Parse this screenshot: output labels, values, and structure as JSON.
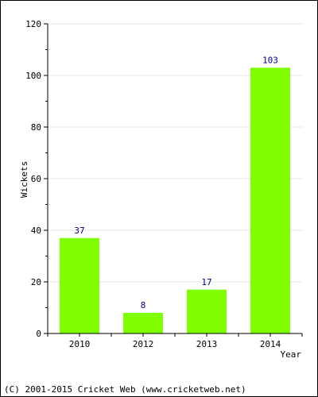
{
  "chart_data": {
    "type": "bar",
    "categories": [
      "2010",
      "2012",
      "2013",
      "2014"
    ],
    "values": [
      37,
      8,
      17,
      103
    ],
    "xlabel": "Year",
    "ylabel": "Wickets",
    "ylim": [
      0,
      120
    ],
    "yticks": [
      0,
      20,
      40,
      60,
      80,
      100,
      120
    ],
    "grid": true,
    "bar_color": "#7fff00",
    "value_label_color": "#000080"
  },
  "footer": {
    "copyright": "(C) 2001-2015 Cricket Web (www.cricketweb.net)"
  }
}
